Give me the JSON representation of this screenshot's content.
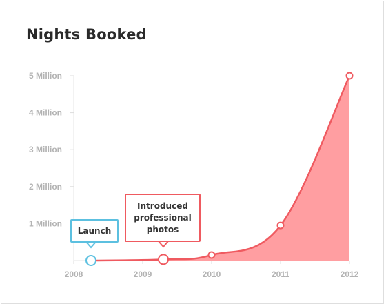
{
  "chart_data": {
    "type": "area",
    "title": "Nights Booked",
    "xlabel": "",
    "ylabel": "",
    "x_ticks": [
      "2008",
      "2009",
      "2010",
      "2011",
      "2012"
    ],
    "y_ticks": [
      "5 Million",
      "4 Million",
      "3 Million",
      "2 Million",
      "1 Million"
    ],
    "ylim": [
      0,
      5000000
    ],
    "xlim": [
      2008,
      2012
    ],
    "series": [
      {
        "x": [
          2008.25,
          2009.3,
          2010.0,
          2011.0,
          2012.0
        ],
        "y": [
          0,
          30000,
          150000,
          950000,
          5000000
        ],
        "color": "#ef5a60",
        "fill": "#ff9ea1"
      }
    ],
    "annotations": [
      {
        "text": "Launch",
        "x": 2008.25,
        "y": 0,
        "color": "#5cc0e0"
      },
      {
        "text": "Introduced professional photos",
        "x": 2009.3,
        "y": 30000,
        "color": "#ef5a60"
      }
    ],
    "grid": false
  }
}
